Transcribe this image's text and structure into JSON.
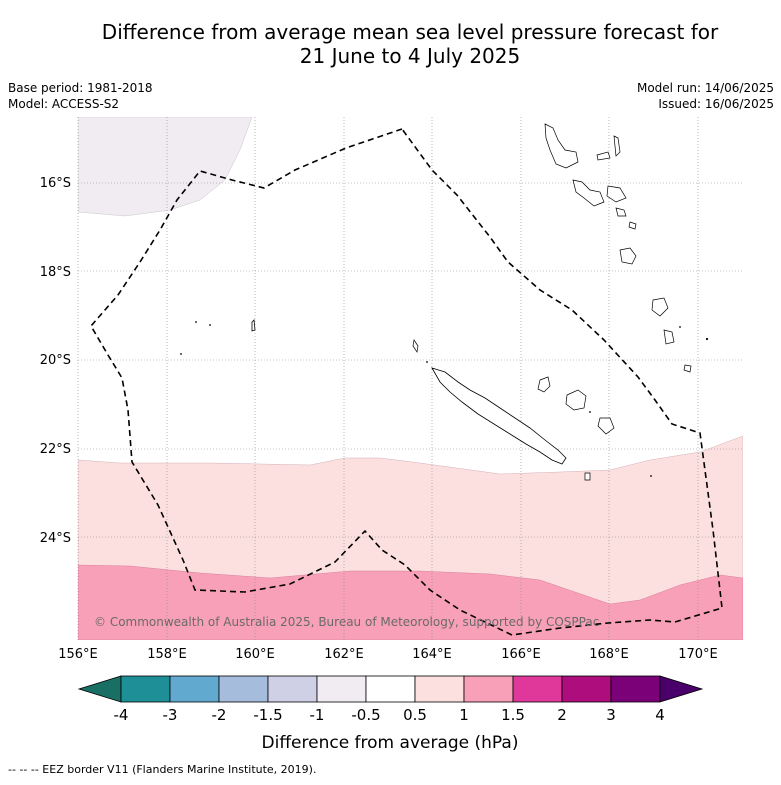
{
  "title_line1": "Difference from average mean sea level pressure forecast for",
  "title_line2": "21 June to 4 July 2025",
  "meta_left": {
    "base_period": "Base period: 1981-2018",
    "model": "Model: ACCESS-S2"
  },
  "meta_right": {
    "model_run": "Model run: 14/06/2025",
    "issued": "Issued: 16/06/2025"
  },
  "map": {
    "lat_labels": [
      "16°S",
      "18°S",
      "20°S",
      "22°S",
      "24°S"
    ],
    "lon_labels": [
      "156°E",
      "158°E",
      "160°E",
      "162°E",
      "164°E",
      "166°E",
      "168°E",
      "170°E"
    ],
    "copyright": "© Commonwealth of Australia 2025, Bureau of Meteorology, supported by COSPPac",
    "fill_colors": {
      "minus_1_to_minus_0_5": "#f0ecf2",
      "0_5_to_1": "#fce0e0",
      "1_to_1_5": "#f8a0b8"
    }
  },
  "colorbar": {
    "ticks": [
      "-4",
      "-3",
      "-2",
      "-1.5",
      "-1",
      "-0.5",
      "0.5",
      "1",
      "1.5",
      "2",
      "3",
      "4"
    ],
    "colors": [
      "#1a6f64",
      "#1e8f97",
      "#62a9d0",
      "#a6bcdc",
      "#cfd0e6",
      "#f0ecf2",
      "#ffffff",
      "#fce0e0",
      "#f8a0b8",
      "#e0389a",
      "#ad0d7d",
      "#7a0177",
      "#49006a"
    ],
    "label": "Difference from average (hPa)"
  },
  "footer": "--  --  -- EEZ border V11 (Flanders Marine Institute, 2019)."
}
